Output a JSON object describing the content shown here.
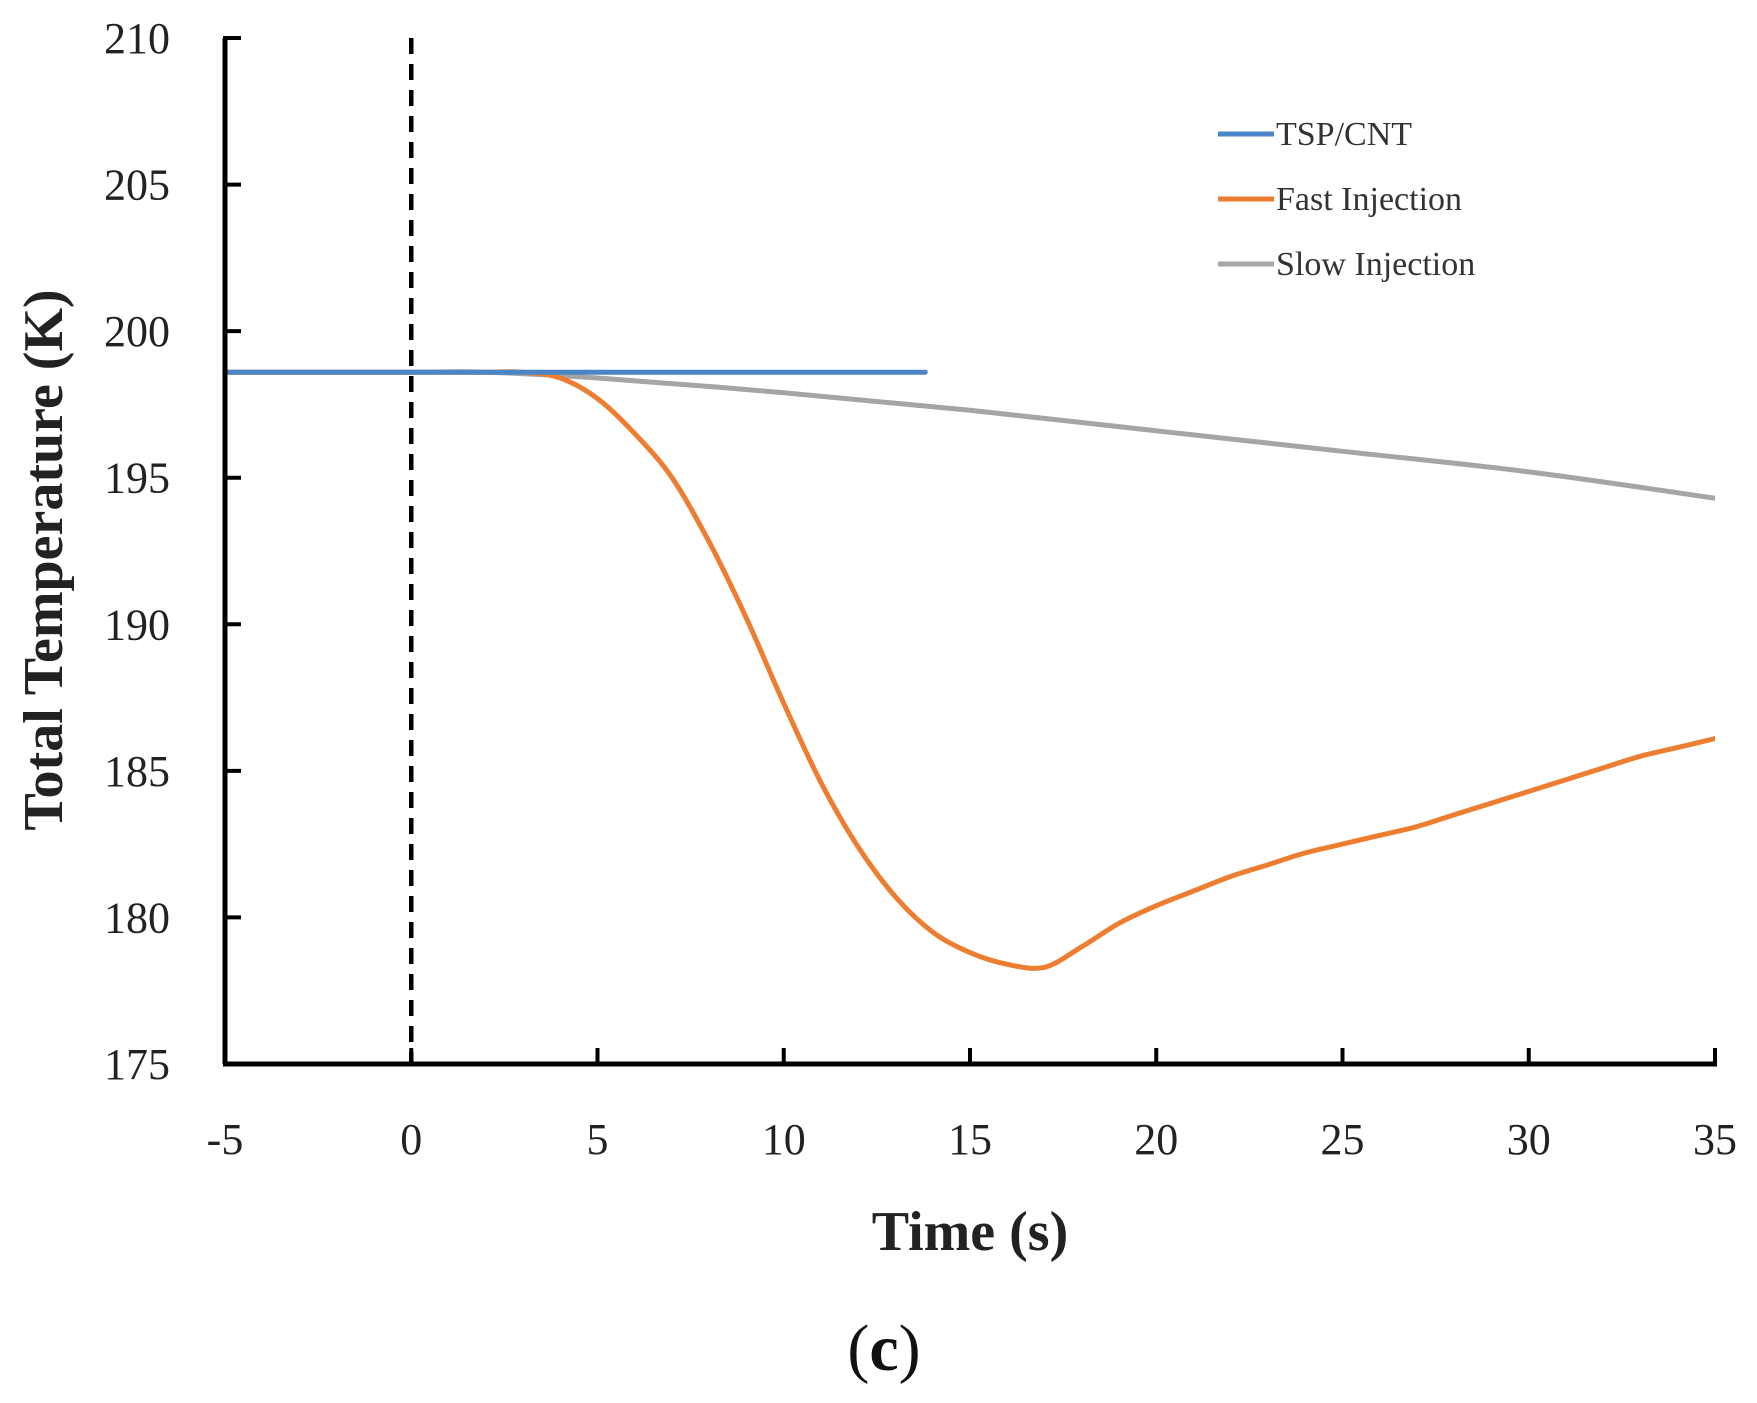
{
  "chart_data": {
    "type": "line",
    "title": "",
    "xlabel": "Time (s)",
    "ylabel": "Total Temperature (K)",
    "xlim": [
      -5,
      35
    ],
    "ylim": [
      175,
      210
    ],
    "xticks": [
      -5,
      0,
      5,
      10,
      15,
      20,
      25,
      30,
      35
    ],
    "yticks": [
      175,
      180,
      185,
      190,
      195,
      200,
      205,
      210
    ],
    "xtick_labels": [
      "-5",
      "0",
      "5",
      "10",
      "15",
      "20",
      "25",
      "30",
      "35"
    ],
    "ytick_labels": [
      "175",
      "180",
      "185",
      "190",
      "195",
      "200",
      "205",
      "210"
    ],
    "vline": {
      "x": 0,
      "style": "dashed",
      "color": "#000000"
    },
    "legend_position": "top-right",
    "series": [
      {
        "name": "TSP/CNT",
        "color": "#4a86c5",
        "x": [
          -5,
          0,
          5,
          10,
          13.8
        ],
        "y": [
          198.6,
          198.6,
          198.6,
          198.6,
          198.6
        ]
      },
      {
        "name": "Fast Injection",
        "color": "#ed7d31",
        "x": [
          -5,
          0,
          2,
          3,
          4,
          5,
          6,
          7,
          8,
          9,
          10,
          11,
          12,
          13,
          14,
          15,
          16,
          17,
          18,
          19,
          20,
          21,
          22,
          23,
          24,
          25,
          26,
          27,
          28,
          29,
          30,
          31,
          32,
          33,
          34,
          35
        ],
        "y": [
          198.6,
          198.6,
          198.6,
          198.6,
          198.4,
          197.7,
          196.5,
          195.0,
          192.8,
          190.2,
          187.3,
          184.6,
          182.4,
          180.7,
          179.5,
          178.8,
          178.4,
          178.3,
          179.0,
          179.8,
          180.4,
          180.9,
          181.4,
          181.8,
          182.2,
          182.5,
          182.8,
          183.1,
          183.5,
          183.9,
          184.3,
          184.7,
          185.1,
          185.5,
          185.8,
          186.1
        ]
      },
      {
        "name": "Slow Injection",
        "color": "#a5a5a5",
        "x": [
          -5,
          0,
          2,
          5,
          10,
          15,
          20,
          25,
          30,
          35
        ],
        "y": [
          198.6,
          198.6,
          198.6,
          198.4,
          197.9,
          197.3,
          196.6,
          195.9,
          195.2,
          194.3
        ]
      }
    ],
    "panel_label": {
      "open": "(",
      "letter": "c",
      "close": ")"
    }
  }
}
